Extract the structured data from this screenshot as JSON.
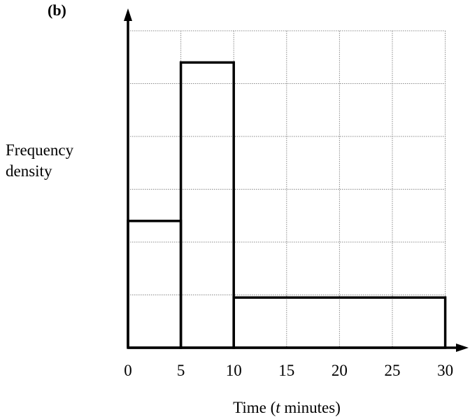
{
  "part_label": "(b)",
  "chart_data": {
    "type": "bar",
    "xlabel": "Time (t minutes)",
    "ylabel_lines": [
      "Frequency",
      "density"
    ],
    "x_ticks": [
      "0",
      "5",
      "10",
      "15",
      "20",
      "25",
      "30"
    ],
    "xlim": [
      0,
      30
    ],
    "ylim": [
      0,
      6
    ],
    "grid": true,
    "bars": [
      {
        "x_start": 0,
        "x_end": 5,
        "value": 2.4
      },
      {
        "x_start": 5,
        "x_end": 10,
        "value": 5.4
      },
      {
        "x_start": 10,
        "x_end": 30,
        "value": 0.95
      }
    ]
  }
}
